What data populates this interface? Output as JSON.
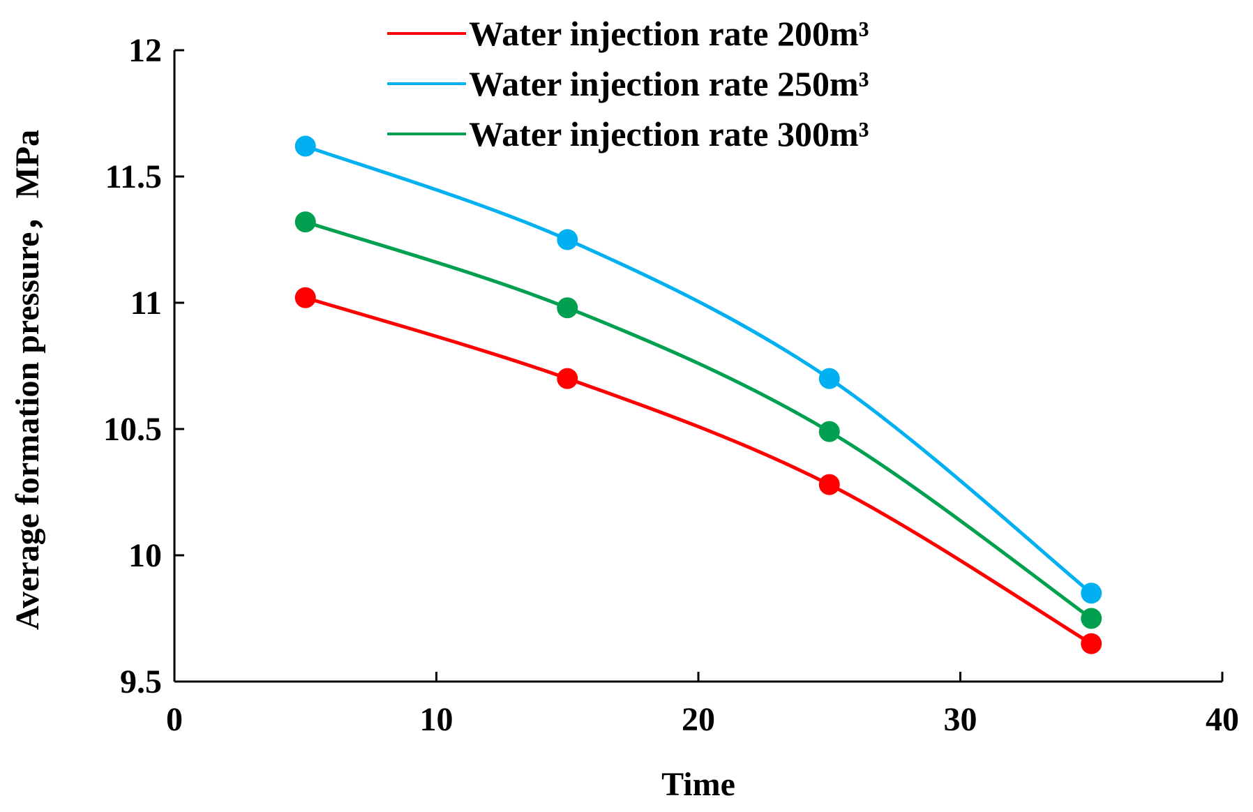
{
  "chart_data": {
    "type": "line",
    "xlabel": "Time",
    "ylabel": "Average formation pressure，MPa",
    "xlim": [
      0,
      40
    ],
    "ylim": [
      9.5,
      12
    ],
    "xticks": [
      "0",
      "10",
      "20",
      "30",
      "40"
    ],
    "yticks": [
      "9.5",
      "10",
      "10.5",
      "11",
      "11.5",
      "12"
    ],
    "grid": false,
    "legend_position": "top",
    "series": [
      {
        "name": "Water injection rate 200m³",
        "color": "#ff0000",
        "x": [
          5,
          15,
          25,
          35
        ],
        "y": [
          11.02,
          10.7,
          10.28,
          9.65
        ]
      },
      {
        "name": "Water injection rate 250m³",
        "color": "#00b0f0",
        "x": [
          5,
          15,
          25,
          35
        ],
        "y": [
          11.62,
          11.25,
          10.7,
          9.85
        ]
      },
      {
        "name": "Water injection rate 300m³",
        "color": "#00a050",
        "x": [
          5,
          15,
          25,
          35
        ],
        "y": [
          11.32,
          10.98,
          10.49,
          9.75
        ]
      }
    ]
  }
}
